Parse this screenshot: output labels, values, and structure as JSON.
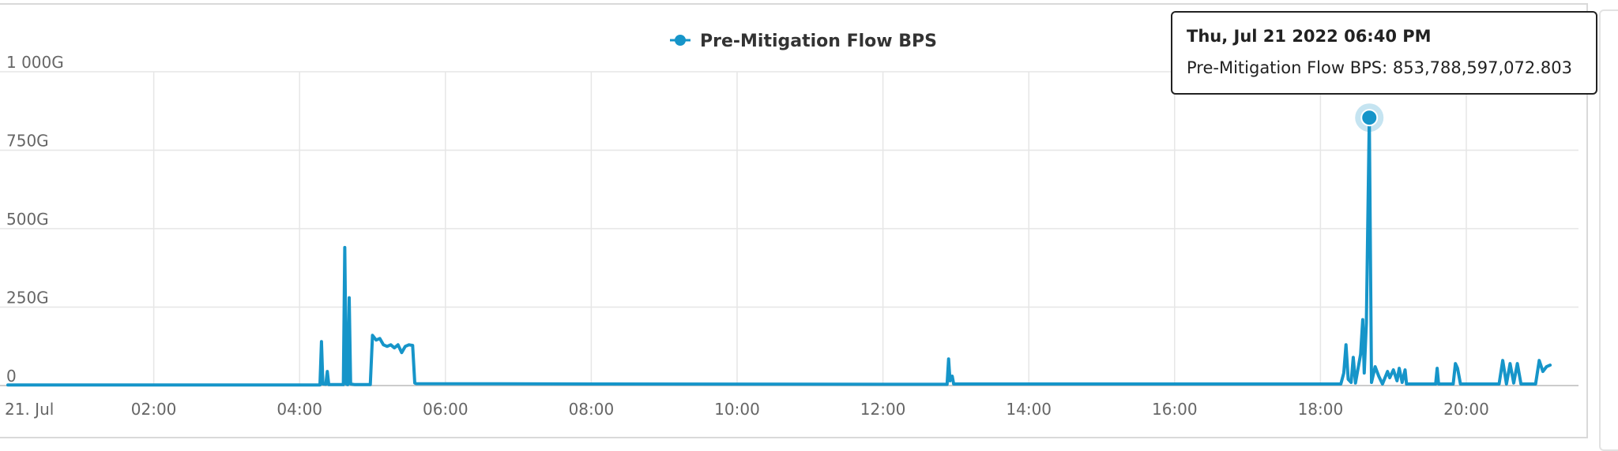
{
  "colors": {
    "series": "#1695c9",
    "grid": "#e6e6e6",
    "axis": "#cccccc",
    "text": "#666666"
  },
  "chart_data": {
    "type": "line",
    "legend": {
      "position": "top-center",
      "entries": [
        "Pre-Mitigation Flow BPS"
      ]
    },
    "x_axis": {
      "range_hours": [
        0,
        21.4
      ],
      "ticks": [
        {
          "hour": 0,
          "label": "21. Jul"
        },
        {
          "hour": 2,
          "label": "02:00"
        },
        {
          "hour": 4,
          "label": "04:00"
        },
        {
          "hour": 6,
          "label": "06:00"
        },
        {
          "hour": 8,
          "label": "08:00"
        },
        {
          "hour": 10,
          "label": "10:00"
        },
        {
          "hour": 12,
          "label": "12:00"
        },
        {
          "hour": 14,
          "label": "14:00"
        },
        {
          "hour": 16,
          "label": "16:00"
        },
        {
          "hour": 18,
          "label": "18:00"
        },
        {
          "hour": 20,
          "label": "20:00"
        }
      ]
    },
    "y_axis": {
      "range": [
        0,
        1000
      ],
      "unit": "G",
      "ticks": [
        {
          "value": 0,
          "label": "0"
        },
        {
          "value": 250,
          "label": "250G"
        },
        {
          "value": 500,
          "label": "500G"
        },
        {
          "value": 750,
          "label": "750G"
        },
        {
          "value": 1000,
          "label": "1 000G"
        }
      ]
    },
    "grid": true,
    "series": [
      {
        "name": "Pre-Mitigation Flow BPS",
        "points": [
          [
            0.0,
            2
          ],
          [
            4.28,
            2
          ],
          [
            4.3,
            140
          ],
          [
            4.32,
            5
          ],
          [
            4.36,
            4
          ],
          [
            4.38,
            45
          ],
          [
            4.4,
            3
          ],
          [
            4.6,
            3
          ],
          [
            4.62,
            440
          ],
          [
            4.64,
            5
          ],
          [
            4.66,
            3
          ],
          [
            4.68,
            280
          ],
          [
            4.7,
            5
          ],
          [
            4.76,
            3
          ],
          [
            4.97,
            3
          ],
          [
            5.0,
            160
          ],
          [
            5.05,
            145
          ],
          [
            5.1,
            150
          ],
          [
            5.15,
            130
          ],
          [
            5.2,
            125
          ],
          [
            5.25,
            130
          ],
          [
            5.3,
            120
          ],
          [
            5.35,
            130
          ],
          [
            5.4,
            105
          ],
          [
            5.45,
            125
          ],
          [
            5.5,
            130
          ],
          [
            5.55,
            128
          ],
          [
            5.58,
            8
          ],
          [
            5.6,
            6
          ],
          [
            8.0,
            5
          ],
          [
            12.0,
            4
          ],
          [
            12.88,
            4
          ],
          [
            12.9,
            85
          ],
          [
            12.92,
            15
          ],
          [
            12.95,
            30
          ],
          [
            12.97,
            5
          ],
          [
            18.28,
            5
          ],
          [
            18.32,
            40
          ],
          [
            18.35,
            130
          ],
          [
            18.38,
            20
          ],
          [
            18.42,
            10
          ],
          [
            18.45,
            90
          ],
          [
            18.48,
            8
          ],
          [
            18.55,
            100
          ],
          [
            18.58,
            210
          ],
          [
            18.6,
            40
          ],
          [
            18.63,
            200
          ],
          [
            18.67,
            853.79
          ],
          [
            18.7,
            10
          ],
          [
            18.75,
            60
          ],
          [
            18.8,
            30
          ],
          [
            18.85,
            5
          ],
          [
            18.92,
            45
          ],
          [
            18.95,
            25
          ],
          [
            19.0,
            50
          ],
          [
            19.05,
            15
          ],
          [
            19.08,
            55
          ],
          [
            19.12,
            10
          ],
          [
            19.16,
            50
          ],
          [
            19.18,
            5
          ],
          [
            19.58,
            5
          ],
          [
            19.6,
            55
          ],
          [
            19.62,
            5
          ],
          [
            19.82,
            5
          ],
          [
            19.85,
            70
          ],
          [
            19.88,
            55
          ],
          [
            19.92,
            5
          ],
          [
            20.45,
            5
          ],
          [
            20.5,
            80
          ],
          [
            20.55,
            5
          ],
          [
            20.6,
            70
          ],
          [
            20.65,
            8
          ],
          [
            20.7,
            70
          ],
          [
            20.75,
            5
          ],
          [
            20.95,
            5
          ],
          [
            21.0,
            80
          ],
          [
            21.05,
            45
          ],
          [
            21.1,
            60
          ],
          [
            21.15,
            65
          ]
        ]
      }
    ],
    "highlight": {
      "hour": 18.67,
      "value": 853.79
    },
    "tooltip": {
      "title": "Thu, Jul 21 2022 06:40 PM",
      "series_label": "Pre-Mitigation Flow BPS",
      "value_text": "853,788,597,072.803"
    }
  }
}
